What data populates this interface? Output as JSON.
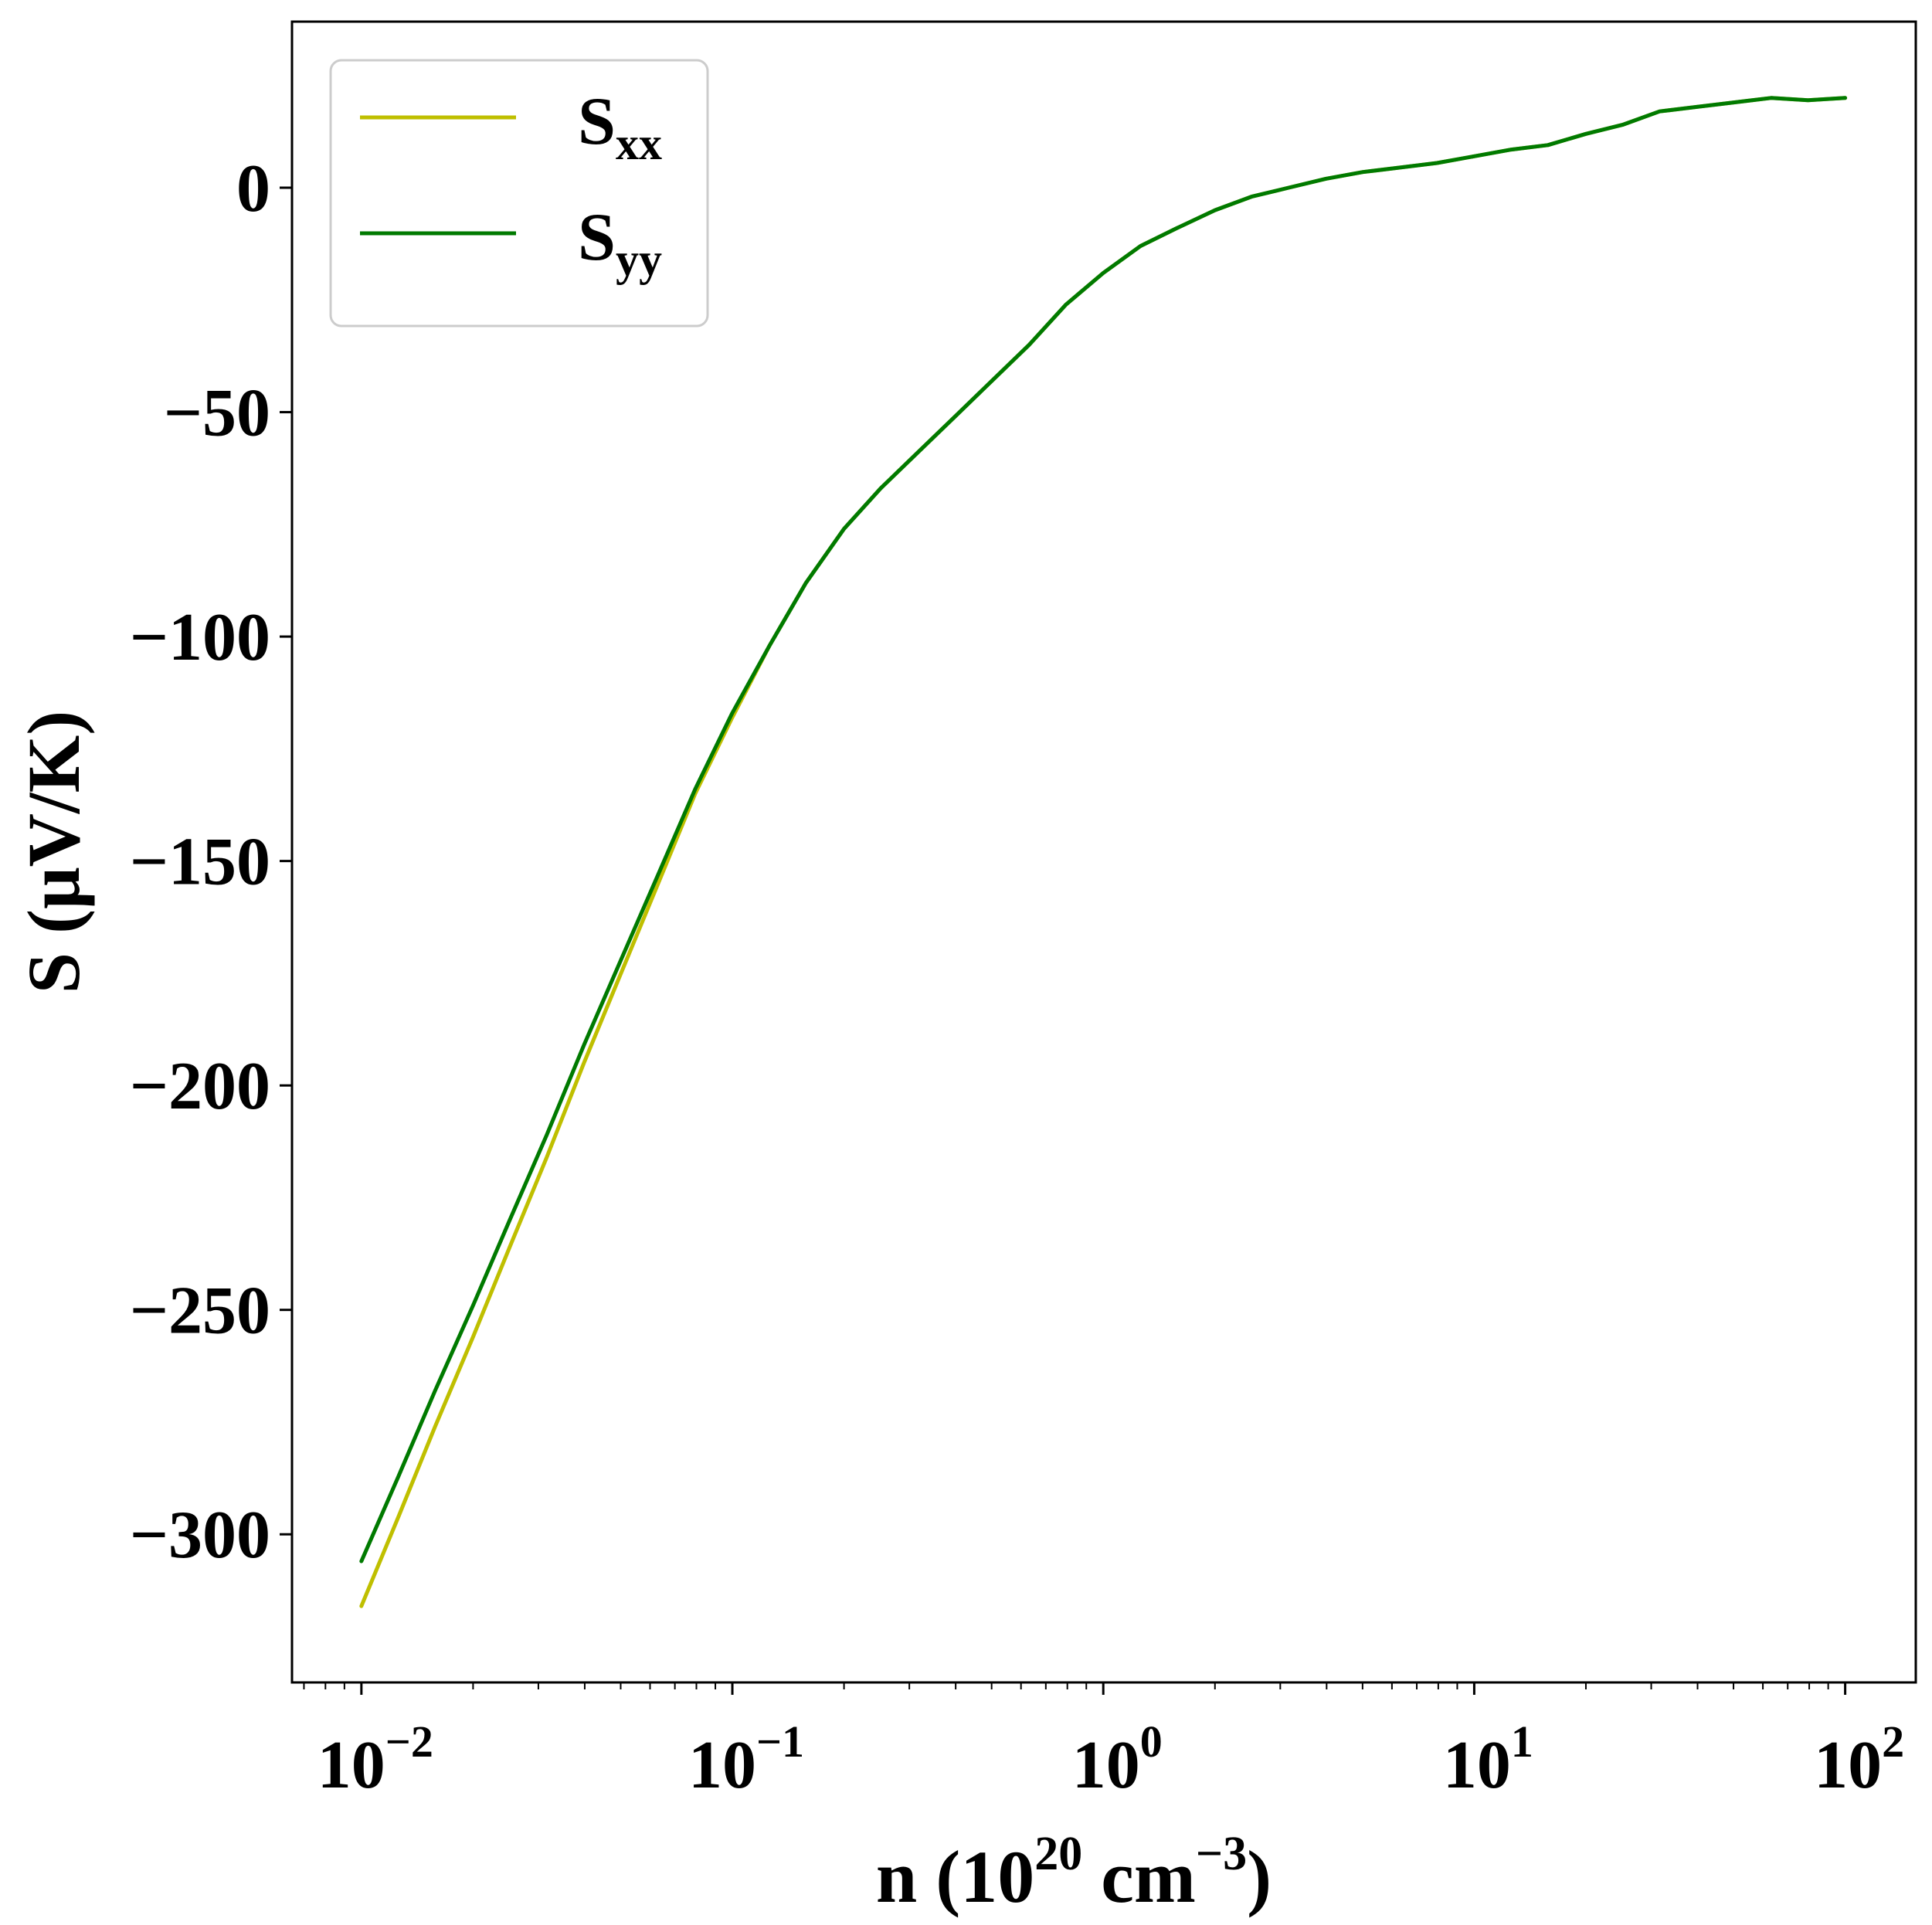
{
  "chart_data": {
    "type": "line",
    "xscale": "log",
    "xlim": [
      0.0065,
      155
    ],
    "ylim": [
      -333,
      37
    ],
    "xlabel": {
      "prefix": "n (10",
      "sup1": "20",
      "mid": " cm",
      "sup2": "−3",
      "suffix": ")"
    },
    "ylabel": "S (μV/K)",
    "xticks": [
      {
        "value": 0.01,
        "base": "10",
        "exp": "−2"
      },
      {
        "value": 0.1,
        "base": "10",
        "exp": "−1"
      },
      {
        "value": 1,
        "base": "10",
        "exp": "0"
      },
      {
        "value": 10,
        "base": "10",
        "exp": "1"
      },
      {
        "value": 100,
        "base": "10",
        "exp": "2"
      }
    ],
    "yticks": [
      {
        "value": 0,
        "label": "0"
      },
      {
        "value": -50,
        "label": "−50"
      },
      {
        "value": -100,
        "label": "−100"
      },
      {
        "value": -150,
        "label": "−150"
      },
      {
        "value": -200,
        "label": "−200"
      },
      {
        "value": -250,
        "label": "−250"
      },
      {
        "value": -300,
        "label": "−300"
      }
    ],
    "legend_position": "top-left",
    "grid": false,
    "series": [
      {
        "name": "S",
        "subscript": "xx",
        "color": "#bfbf00",
        "x": [
          0.01,
          0.0126,
          0.0158,
          0.02,
          0.0251,
          0.0316,
          0.0398,
          0.0501,
          0.0631,
          0.0794,
          0.1,
          0.126,
          0.158,
          0.2,
          0.251,
          0.316,
          0.398,
          0.501,
          0.631,
          0.794,
          1.0,
          1.26,
          1.58,
          2.0,
          2.51,
          3.16,
          3.98,
          5.01,
          6.31,
          7.94,
          10.0,
          12.6,
          15.8,
          20.0,
          25.1,
          31.6,
          39.8,
          50.1,
          63.1,
          79.4,
          100.0
        ],
        "y": [
          -316,
          -296,
          -276,
          -256,
          -236,
          -216,
          -195,
          -175,
          -155,
          -135,
          -118,
          -102,
          -88,
          -76,
          -67,
          -59,
          -51,
          -43,
          -35,
          -26,
          -19,
          -13,
          -9,
          -5,
          -2,
          0,
          2,
          3.5,
          4.5,
          5.5,
          7,
          8.5,
          9.5,
          12,
          14,
          17,
          18,
          19,
          20,
          19.5,
          20
        ]
      },
      {
        "name": "S",
        "subscript": "yy",
        "color": "#007a00",
        "x": [
          0.01,
          0.0126,
          0.0158,
          0.02,
          0.0251,
          0.0316,
          0.0398,
          0.0501,
          0.0631,
          0.0794,
          0.1,
          0.126,
          0.158,
          0.2,
          0.251,
          0.316,
          0.398,
          0.501,
          0.631,
          0.794,
          1.0,
          1.26,
          1.58,
          2.0,
          2.51,
          3.16,
          3.98,
          5.01,
          6.31,
          7.94,
          10.0,
          12.6,
          15.8,
          20.0,
          25.1,
          31.6,
          39.8,
          50.1,
          63.1,
          79.4,
          100.0
        ],
        "y": [
          -306,
          -287,
          -268,
          -249,
          -230,
          -211,
          -191,
          -172,
          -153,
          -134,
          -117,
          -102,
          -88,
          -76,
          -67,
          -59,
          -51,
          -43,
          -35,
          -26,
          -19,
          -13,
          -9,
          -5,
          -2,
          0,
          2,
          3.5,
          4.5,
          5.5,
          7,
          8.5,
          9.5,
          12,
          14,
          17,
          18,
          19,
          20,
          19.5,
          20
        ]
      }
    ]
  }
}
